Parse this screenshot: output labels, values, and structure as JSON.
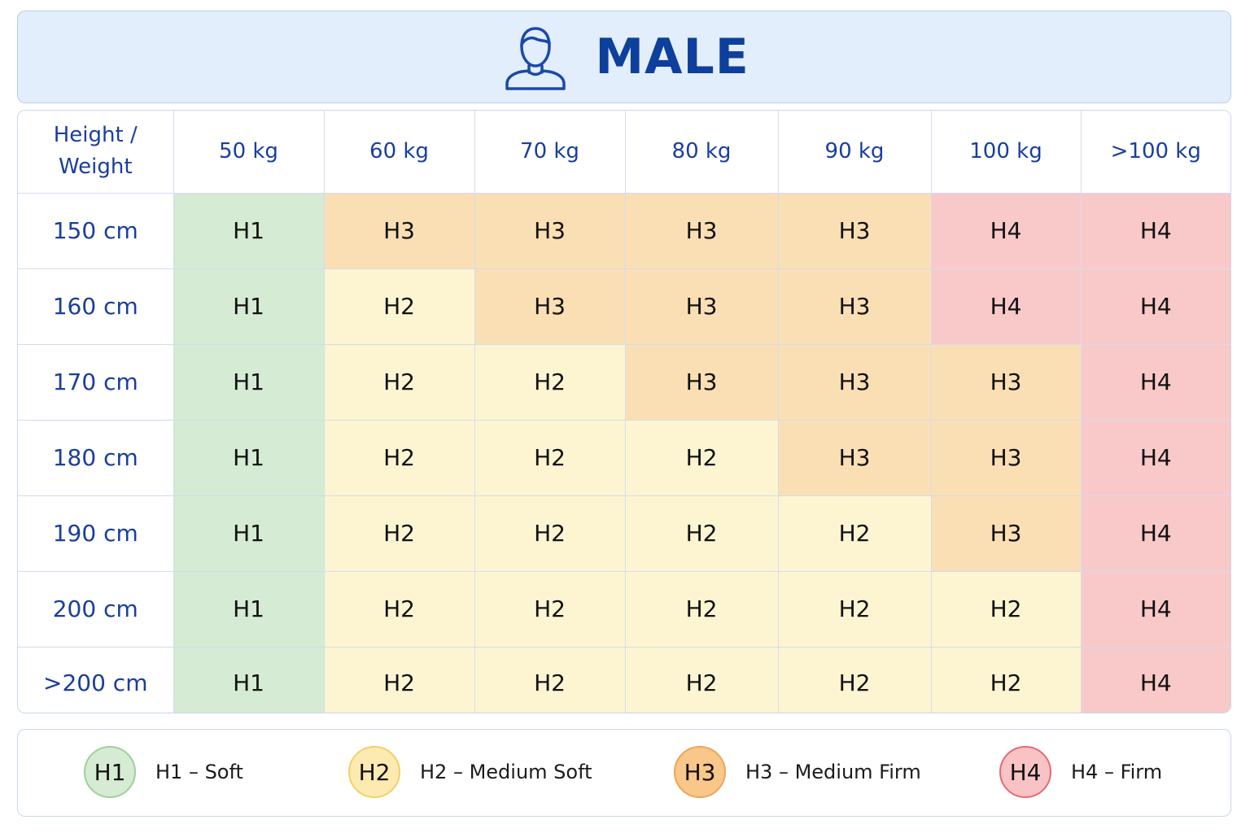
{
  "header": {
    "icon": "person-icon",
    "title": "MALE"
  },
  "table": {
    "corner": [
      "Height /",
      "Weight"
    ],
    "columns": [
      "50 kg",
      "60 kg",
      "70 kg",
      "80 kg",
      "90 kg",
      "100 kg",
      ">100 kg"
    ],
    "rows": [
      {
        "height": "150 cm",
        "cells": [
          "H1",
          "H3",
          "H3",
          "H3",
          "H3",
          "H4",
          "H4"
        ]
      },
      {
        "height": "160 cm",
        "cells": [
          "H1",
          "H2",
          "H3",
          "H3",
          "H3",
          "H4",
          "H4"
        ]
      },
      {
        "height": "170 cm",
        "cells": [
          "H1",
          "H2",
          "H2",
          "H3",
          "H3",
          "H3",
          "H4"
        ]
      },
      {
        "height": "180 cm",
        "cells": [
          "H1",
          "H2",
          "H2",
          "H2",
          "H3",
          "H3",
          "H4"
        ]
      },
      {
        "height": "190 cm",
        "cells": [
          "H1",
          "H2",
          "H2",
          "H2",
          "H2",
          "H3",
          "H4"
        ]
      },
      {
        "height": "200 cm",
        "cells": [
          "H1",
          "H2",
          "H2",
          "H2",
          "H2",
          "H2",
          "H4"
        ]
      },
      {
        "height": ">200 cm",
        "cells": [
          "H1",
          "H2",
          "H2",
          "H2",
          "H2",
          "H2",
          "H4"
        ]
      }
    ]
  },
  "legend": [
    {
      "code": "H1",
      "label": "H1 – Soft"
    },
    {
      "code": "H2",
      "label": "H2 – Medium Soft"
    },
    {
      "code": "H3",
      "label": "H3 – Medium Firm"
    },
    {
      "code": "H4",
      "label": "H4 – Firm"
    }
  ],
  "colors": {
    "title": "#0d3f9c",
    "H1": "#d6ebd3",
    "H2": "#fdf5d2",
    "H3": "#fbdfb4",
    "H4": "#f9c9ca"
  }
}
